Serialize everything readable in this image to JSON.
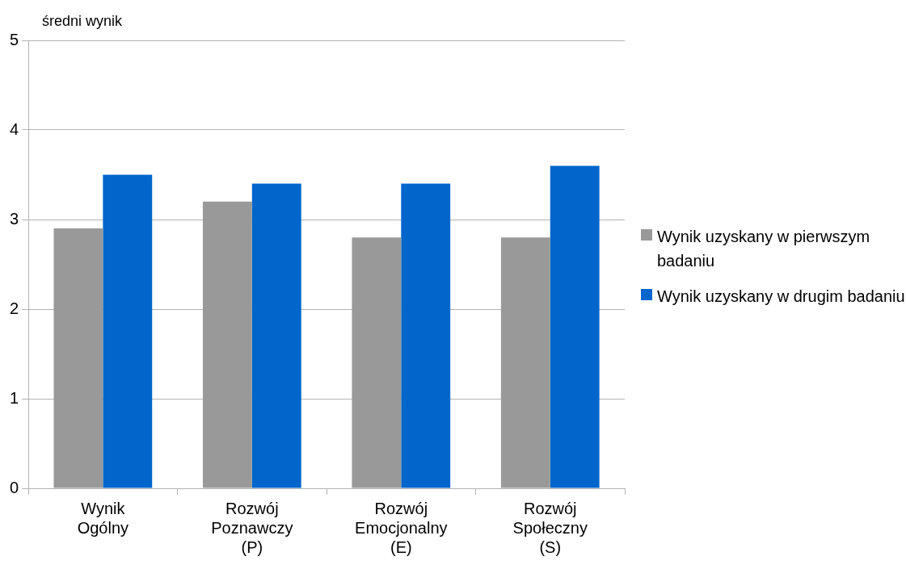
{
  "chart_data": {
    "type": "bar",
    "ylabel": "średni wynik",
    "categories": [
      "Wynik Ogólny",
      "Rozwój Poznawczy (P)",
      "Rozwój Emocjonalny (E)",
      "Rozwój Społeczny (S)"
    ],
    "series": [
      {
        "name": "Wynik uzyskany w pierwszym badaniu",
        "color": "#999999",
        "values": [
          2.9,
          3.2,
          2.8,
          2.8
        ]
      },
      {
        "name": "Wynik uzyskany w drugim badaniu",
        "color": "#0066cc",
        "values": [
          3.5,
          3.4,
          3.4,
          3.6
        ]
      }
    ],
    "ylim": [
      0,
      5
    ],
    "yticks": [
      0,
      1,
      2,
      3,
      4,
      5
    ],
    "grid": "y",
    "legend": "right"
  }
}
